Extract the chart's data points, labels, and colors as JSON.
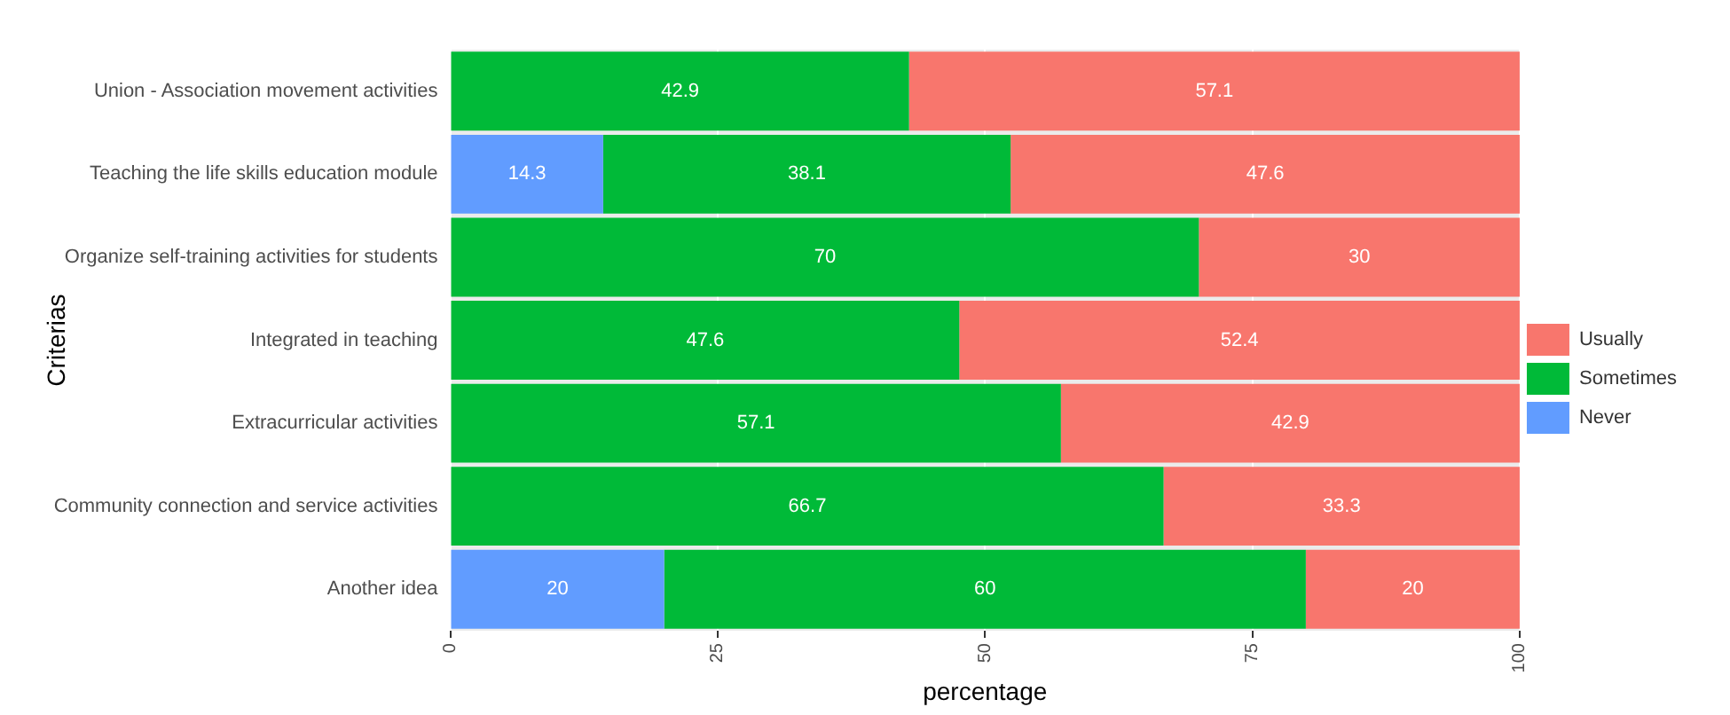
{
  "chart_data": {
    "type": "bar",
    "orientation": "horizontal",
    "stacked": true,
    "categories": [
      "Union - Association movement activities",
      "Teaching the life skills education module",
      "Organize self-training activities for students",
      "Integrated in teaching",
      "Extracurricular activities",
      "Community connection and service activities",
      "Another idea"
    ],
    "series": [
      {
        "name": "Never",
        "color": "#619cff",
        "values": [
          0,
          14.3,
          0,
          0,
          0,
          0,
          20
        ],
        "value_labels": [
          null,
          "14.3",
          null,
          null,
          null,
          null,
          "20"
        ]
      },
      {
        "name": "Sometimes",
        "color": "#00ba38",
        "values": [
          42.9,
          38.1,
          70,
          47.6,
          57.1,
          66.7,
          60
        ],
        "value_labels": [
          "42.9",
          "38.1",
          "70",
          "47.6",
          "57.1",
          "66.7",
          "60"
        ]
      },
      {
        "name": "Usually",
        "color": "#f8766d",
        "values": [
          57.1,
          47.6,
          30,
          52.4,
          42.9,
          33.3,
          20
        ],
        "value_labels": [
          "57.1",
          "47.6",
          "30",
          "52.4",
          "42.9",
          "33.3",
          "20"
        ]
      }
    ],
    "xlabel": "percentage",
    "ylabel": "Criterias",
    "xlim": [
      0,
      100
    ],
    "xticks": [
      0,
      25,
      50,
      75,
      100
    ],
    "grid": "x",
    "legend": "right"
  }
}
